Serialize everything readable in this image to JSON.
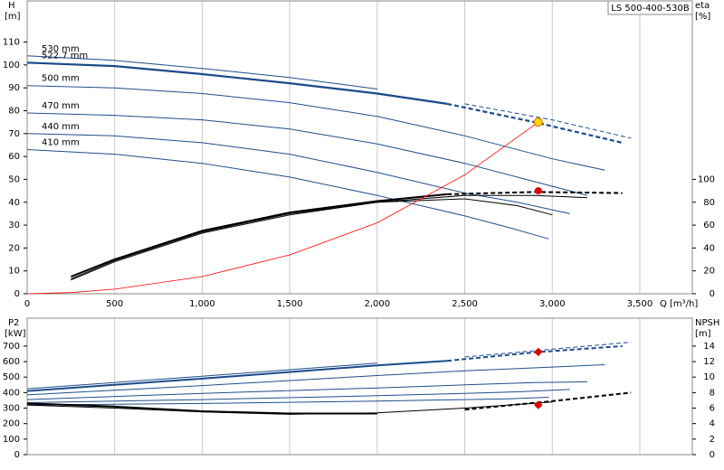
{
  "chart_data": [
    {
      "type": "line",
      "title": "LS 500-400-530B",
      "y_label": "H",
      "y_unit": "[m]",
      "y2_label": "eta",
      "y2_unit": "[%]",
      "x_label": "Q [m³/h]",
      "xlim": [
        0,
        3800
      ],
      "xticks": [
        0,
        500,
        {
          "value": 1000,
          "label": "1,000"
        },
        {
          "value": 1500,
          "label": "1,500"
        },
        {
          "value": 2000,
          "label": "2,000"
        },
        {
          "value": 2500,
          "label": "2,500"
        },
        {
          "value": 3000,
          "label": "3,000"
        },
        {
          "value": 3500,
          "label": "3,500"
        }
      ],
      "xtick_labels": true,
      "grid": "x",
      "ylim": [
        0,
        128
      ],
      "yticks": [
        0,
        10,
        20,
        30,
        40,
        50,
        60,
        70,
        80,
        90,
        100,
        110
      ],
      "y2lim": [
        0,
        256
      ],
      "y2ticks": [
        0,
        20,
        40,
        60,
        80,
        100
      ],
      "series": [
        {
          "name": "530 mm",
          "color": "#1f4e8c",
          "width": 1,
          "dash_from": 2100,
          "x": [
            0,
            500,
            1000,
            1500,
            2000,
            2500,
            3000,
            3450
          ],
          "values": [
            104,
            102,
            98.5,
            94.5,
            89.5,
            83,
            76,
            68
          ]
        },
        {
          "name": "522.7 mm",
          "color": "#1a4a8a",
          "width": 2.2,
          "dash_from": 2400,
          "x": [
            0,
            500,
            1000,
            1500,
            2000,
            2400,
            2900,
            3400
          ],
          "values": [
            101,
            99.5,
            96,
            92,
            87.5,
            83,
            75,
            66
          ]
        },
        {
          "name": "500 mm",
          "color": "#1f4e8c",
          "width": 1,
          "x": [
            0,
            500,
            1000,
            1500,
            2000,
            2500,
            3000,
            3300
          ],
          "values": [
            91,
            90,
            87.5,
            83.5,
            77.5,
            69,
            59,
            54
          ]
        },
        {
          "name": "470 mm",
          "color": "#1f4e8c",
          "width": 1,
          "x": [
            0,
            500,
            1000,
            1500,
            2000,
            2500,
            2900,
            3200
          ],
          "values": [
            79,
            78,
            76,
            72,
            65.5,
            57,
            49,
            43
          ]
        },
        {
          "name": "440 mm",
          "color": "#1f4e8c",
          "width": 1,
          "x": [
            0,
            500,
            1000,
            1500,
            2000,
            2500,
            2800,
            3100
          ],
          "values": [
            70,
            69,
            66,
            61,
            53,
            44,
            40,
            35
          ]
        },
        {
          "name": "410 mm",
          "color": "#1f4e8c",
          "width": 1,
          "x": [
            0,
            500,
            1000,
            1500,
            2000,
            2500,
            2750,
            2980
          ],
          "values": [
            63,
            61,
            57,
            51,
            43,
            34,
            29,
            24
          ]
        },
        {
          "axis": "y2",
          "color": "#000000",
          "width": 2,
          "dash_from": 2400,
          "x": [
            250,
            500,
            1000,
            1500,
            2000,
            2400,
            2900,
            3400
          ],
          "values": [
            15,
            30,
            55,
            71,
            81,
            87,
            89,
            88
          ]
        },
        {
          "axis": "y2",
          "color": "#000000",
          "width": 1,
          "x": [
            250,
            500,
            1000,
            1500,
            2000,
            2500,
            2800,
            3000
          ],
          "values": [
            13,
            29,
            54,
            70,
            80,
            83,
            77,
            69
          ]
        },
        {
          "axis": "y2",
          "color": "#000000",
          "width": 1,
          "x": [
            250,
            500,
            1000,
            1500,
            2000,
            2500,
            2900,
            3200
          ],
          "values": [
            12,
            28,
            53,
            69,
            80,
            86,
            86,
            84
          ]
        },
        {
          "color": "#ff0000",
          "width": 0.8,
          "x": [
            0,
            250,
            500,
            1000,
            1500,
            2000,
            2500,
            2920
          ],
          "values": [
            0,
            0.5,
            2,
            7.5,
            17,
            31,
            52,
            75
          ]
        }
      ],
      "markers": [
        {
          "x": 2920,
          "y": 75,
          "color": "#ffd700",
          "shape": "circle"
        },
        {
          "x": 2920,
          "y": 90,
          "axis": "y2",
          "color": "#e00000",
          "shape": "circle"
        }
      ]
    },
    {
      "type": "line",
      "y_label": "P2",
      "y_unit": "[kW]",
      "y2_label": "NPSH",
      "y2_unit": "[m]",
      "xlim": [
        0,
        3800
      ],
      "xticks": [
        0,
        500,
        1000,
        1500,
        2000,
        2500,
        3000,
        3500
      ],
      "xtick_labels": false,
      "grid": "x",
      "ylim": [
        0,
        880
      ],
      "yticks": [
        0,
        100,
        200,
        300,
        400,
        500,
        600,
        700
      ],
      "y2lim": [
        0,
        17.6
      ],
      "y2ticks": [
        0,
        2,
        4,
        6,
        8,
        10,
        12,
        14
      ],
      "series": [
        {
          "color": "#1f4e8c",
          "width": 1,
          "dash_from": 2100,
          "x": [
            0,
            1000,
            2000,
            2500,
            3000,
            3450
          ],
          "values": [
            425,
            505,
            590,
            630,
            680,
            725
          ]
        },
        {
          "color": "#1a4a8a",
          "width": 2,
          "dash_from": 2400,
          "x": [
            0,
            1000,
            2000,
            2400,
            2900,
            3400
          ],
          "values": [
            410,
            490,
            575,
            605,
            660,
            700
          ]
        },
        {
          "color": "#1f4e8c",
          "width": 1,
          "x": [
            0,
            1000,
            2000,
            2500,
            3000,
            3300
          ],
          "values": [
            385,
            445,
            510,
            540,
            565,
            580
          ]
        },
        {
          "color": "#1f4e8c",
          "width": 1,
          "x": [
            0,
            1000,
            2000,
            2500,
            2900,
            3200
          ],
          "values": [
            355,
            395,
            430,
            450,
            465,
            470
          ]
        },
        {
          "color": "#1f4e8c",
          "width": 1,
          "x": [
            0,
            1000,
            2000,
            2500,
            2800,
            3100
          ],
          "values": [
            335,
            355,
            380,
            395,
            405,
            420
          ]
        },
        {
          "color": "#1f4e8c",
          "width": 1,
          "x": [
            0,
            1000,
            2000,
            2500,
            2750,
            2980
          ],
          "values": [
            320,
            330,
            345,
            355,
            360,
            370
          ]
        },
        {
          "axis": "y2",
          "color": "#000000",
          "width": 2,
          "dash_from": 2400,
          "x": [
            0,
            500,
            1000,
            1500,
            2000,
            2500,
            3000,
            3450
          ],
          "values": [
            6.6,
            6.2,
            5.6,
            5.3,
            5.3,
            5.8,
            6.9,
            8
          ]
        },
        {
          "axis": "y2",
          "color": "#000000",
          "width": 1,
          "x": [
            0,
            500,
            1000,
            1500,
            2000,
            2500,
            3000
          ],
          "values": [
            6.4,
            6.0,
            5.5,
            5.2,
            5.4,
            6.0,
            6.8
          ]
        }
      ],
      "markers": [
        {
          "x": 2920,
          "y": 662,
          "color": "#e00000",
          "shape": "diamond"
        },
        {
          "x": 2920,
          "y": 6.4,
          "axis": "y2",
          "color": "#e00000",
          "shape": "diamond"
        }
      ]
    }
  ]
}
